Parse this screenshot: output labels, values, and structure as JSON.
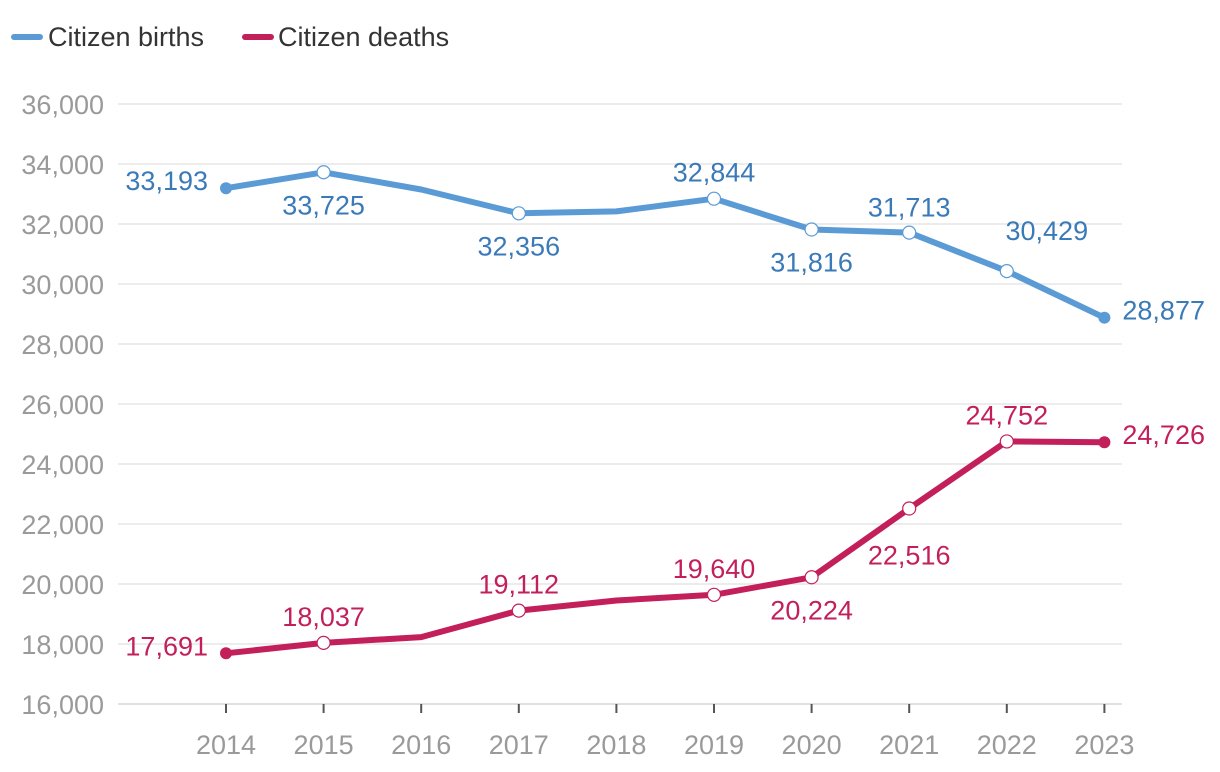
{
  "chart_data": {
    "type": "line",
    "title": "",
    "xlabel": "",
    "ylabel": "",
    "x": [
      "2014",
      "2015",
      "2016",
      "2017",
      "2018",
      "2019",
      "2020",
      "2021",
      "2022",
      "2023"
    ],
    "ylim": [
      16000,
      36000
    ],
    "yticks": [
      16000,
      18000,
      20000,
      22000,
      24000,
      26000,
      28000,
      30000,
      32000,
      34000,
      36000
    ],
    "ytick_labels": [
      "16,000",
      "18,000",
      "20,000",
      "22,000",
      "24,000",
      "26,000",
      "28,000",
      "30,000",
      "32,000",
      "34,000",
      "36,000"
    ],
    "grid": true,
    "legend_position": "top-left",
    "series": [
      {
        "name": "Citizen births",
        "color": "#5b9bd5",
        "label_color": "#3a7ab8",
        "values": [
          33193,
          33725,
          33150,
          32356,
          32420,
          32844,
          31816,
          31713,
          30429,
          28877
        ],
        "labels": [
          "33,193",
          "33,725",
          "",
          "32,356",
          "",
          "32,844",
          "31,816",
          "31,713",
          "30,429",
          "28,877"
        ]
      },
      {
        "name": "Citizen deaths",
        "color": "#c21f5b",
        "label_color": "#c21f5b",
        "values": [
          17691,
          18037,
          18230,
          19112,
          19450,
          19640,
          20224,
          22516,
          24752,
          24726
        ],
        "labels": [
          "17,691",
          "18,037",
          "",
          "19,112",
          "",
          "19,640",
          "20,224",
          "22,516",
          "24,752",
          "24,726"
        ]
      }
    ]
  }
}
